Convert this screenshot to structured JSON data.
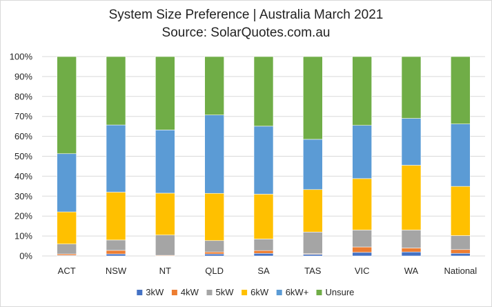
{
  "chart_data": {
    "type": "bar",
    "stacked": true,
    "title": "System Size Preference  | Australia March 2021",
    "subtitle": "Source: SolarQuotes.com.au",
    "categories": [
      "ACT",
      "NSW",
      "NT",
      "QLD",
      "SA",
      "TAS",
      "VIC",
      "WA",
      "National"
    ],
    "ylim": [
      0,
      100
    ],
    "yticks": [
      "0%",
      "10%",
      "20%",
      "30%",
      "40%",
      "50%",
      "60%",
      "70%",
      "80%",
      "90%",
      "100%"
    ],
    "grid": true,
    "legend_position": "bottom",
    "series": [
      {
        "name": "3kW",
        "color": "#4472c4",
        "values": [
          0.3,
          1.0,
          0.0,
          1.0,
          1.3,
          0.8,
          1.8,
          2.0,
          1.3
        ]
      },
      {
        "name": "4kW",
        "color": "#ed7d31",
        "values": [
          0.7,
          1.8,
          0.3,
          1.0,
          1.4,
          0.3,
          2.7,
          2.0,
          1.9
        ]
      },
      {
        "name": "5kW",
        "color": "#a5a5a5",
        "values": [
          5.0,
          5.2,
          10.2,
          5.7,
          5.8,
          10.9,
          8.5,
          9.0,
          7.0
        ]
      },
      {
        "name": "6kW",
        "color": "#ffc000",
        "values": [
          16.1,
          24.0,
          21.0,
          23.7,
          22.5,
          21.3,
          25.8,
          32.5,
          24.7
        ]
      },
      {
        "name": "6kW+",
        "color": "#5b9bd5",
        "values": [
          29.2,
          33.7,
          31.7,
          39.3,
          34.1,
          25.2,
          26.7,
          23.5,
          31.3
        ]
      },
      {
        "name": "Unsure",
        "color": "#70ad47",
        "values": [
          48.7,
          34.3,
          36.8,
          29.3,
          34.9,
          41.5,
          34.5,
          31.0,
          33.8
        ]
      }
    ]
  }
}
